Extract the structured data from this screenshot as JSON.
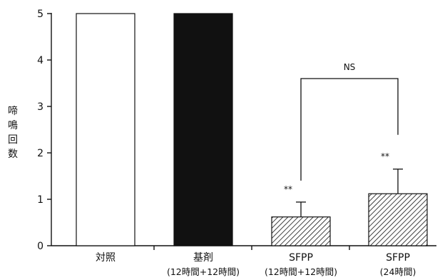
{
  "chart_data": {
    "type": "bar",
    "ylabel": [
      "啼",
      "鳴",
      "回",
      "数"
    ],
    "ylim": [
      0,
      5
    ],
    "yticks": [
      0,
      1,
      2,
      3,
      4,
      5
    ],
    "categories": [
      {
        "label": "対照",
        "sublabel": ""
      },
      {
        "label": "基剤",
        "sublabel": "(12時間+12時間)"
      },
      {
        "label": "SFPP",
        "sublabel": "(12時間+12時間)"
      },
      {
        "label": "SFPP",
        "sublabel": "(24時間)"
      }
    ],
    "values": [
      5,
      5,
      0.62,
      1.12
    ],
    "errors": [
      0,
      0,
      0.32,
      0.53
    ],
    "fills": [
      "white",
      "black",
      "hatch",
      "hatch"
    ],
    "significance": [
      "",
      "",
      "**",
      "**"
    ],
    "comparison": {
      "from": 2,
      "to": 3,
      "label": "NS"
    }
  }
}
